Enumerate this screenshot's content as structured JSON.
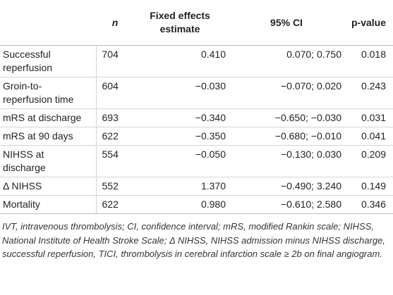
{
  "table": {
    "header": [
      "",
      "n",
      "Fixed effects estimate",
      "95% CI",
      "p-value"
    ],
    "rows": [
      [
        "Successful reperfusion",
        "704",
        "0.410",
        "0.070; 0.750",
        "0.018"
      ],
      [
        "Groin-to-reperfusion time",
        "604",
        "−0.030",
        "−0.070; 0.020",
        "0.243"
      ],
      [
        "mRS at discharge",
        "693",
        "−0.340",
        "−0.650; −0.030",
        "0.031"
      ],
      [
        "mRS at 90 days",
        "622",
        "−0.350",
        "−0.680; −0.010",
        "0.041"
      ],
      [
        "NIHSS at discharge",
        "554",
        "−0.050",
        "−0.130; 0.030",
        "0.209"
      ],
      [
        "Δ NIHSS",
        "552",
        "1.370",
        "−0.490; 3.240",
        "0.149"
      ],
      [
        "Mortality",
        "622",
        "0.980",
        "−0.610; 2.580",
        "0.346"
      ]
    ]
  },
  "footnote": "IVT, intravenous thrombolysis; CI, confidence interval; mRS, modified Rankin scale; NIHSS, National Institute of Health Stroke Scale; Δ NIHSS, NIHSS admission minus NIHSS discharge, successful reperfusion, TICI, thrombolysis in cerebral infarction scale ≥ 2b on final angiogram."
}
